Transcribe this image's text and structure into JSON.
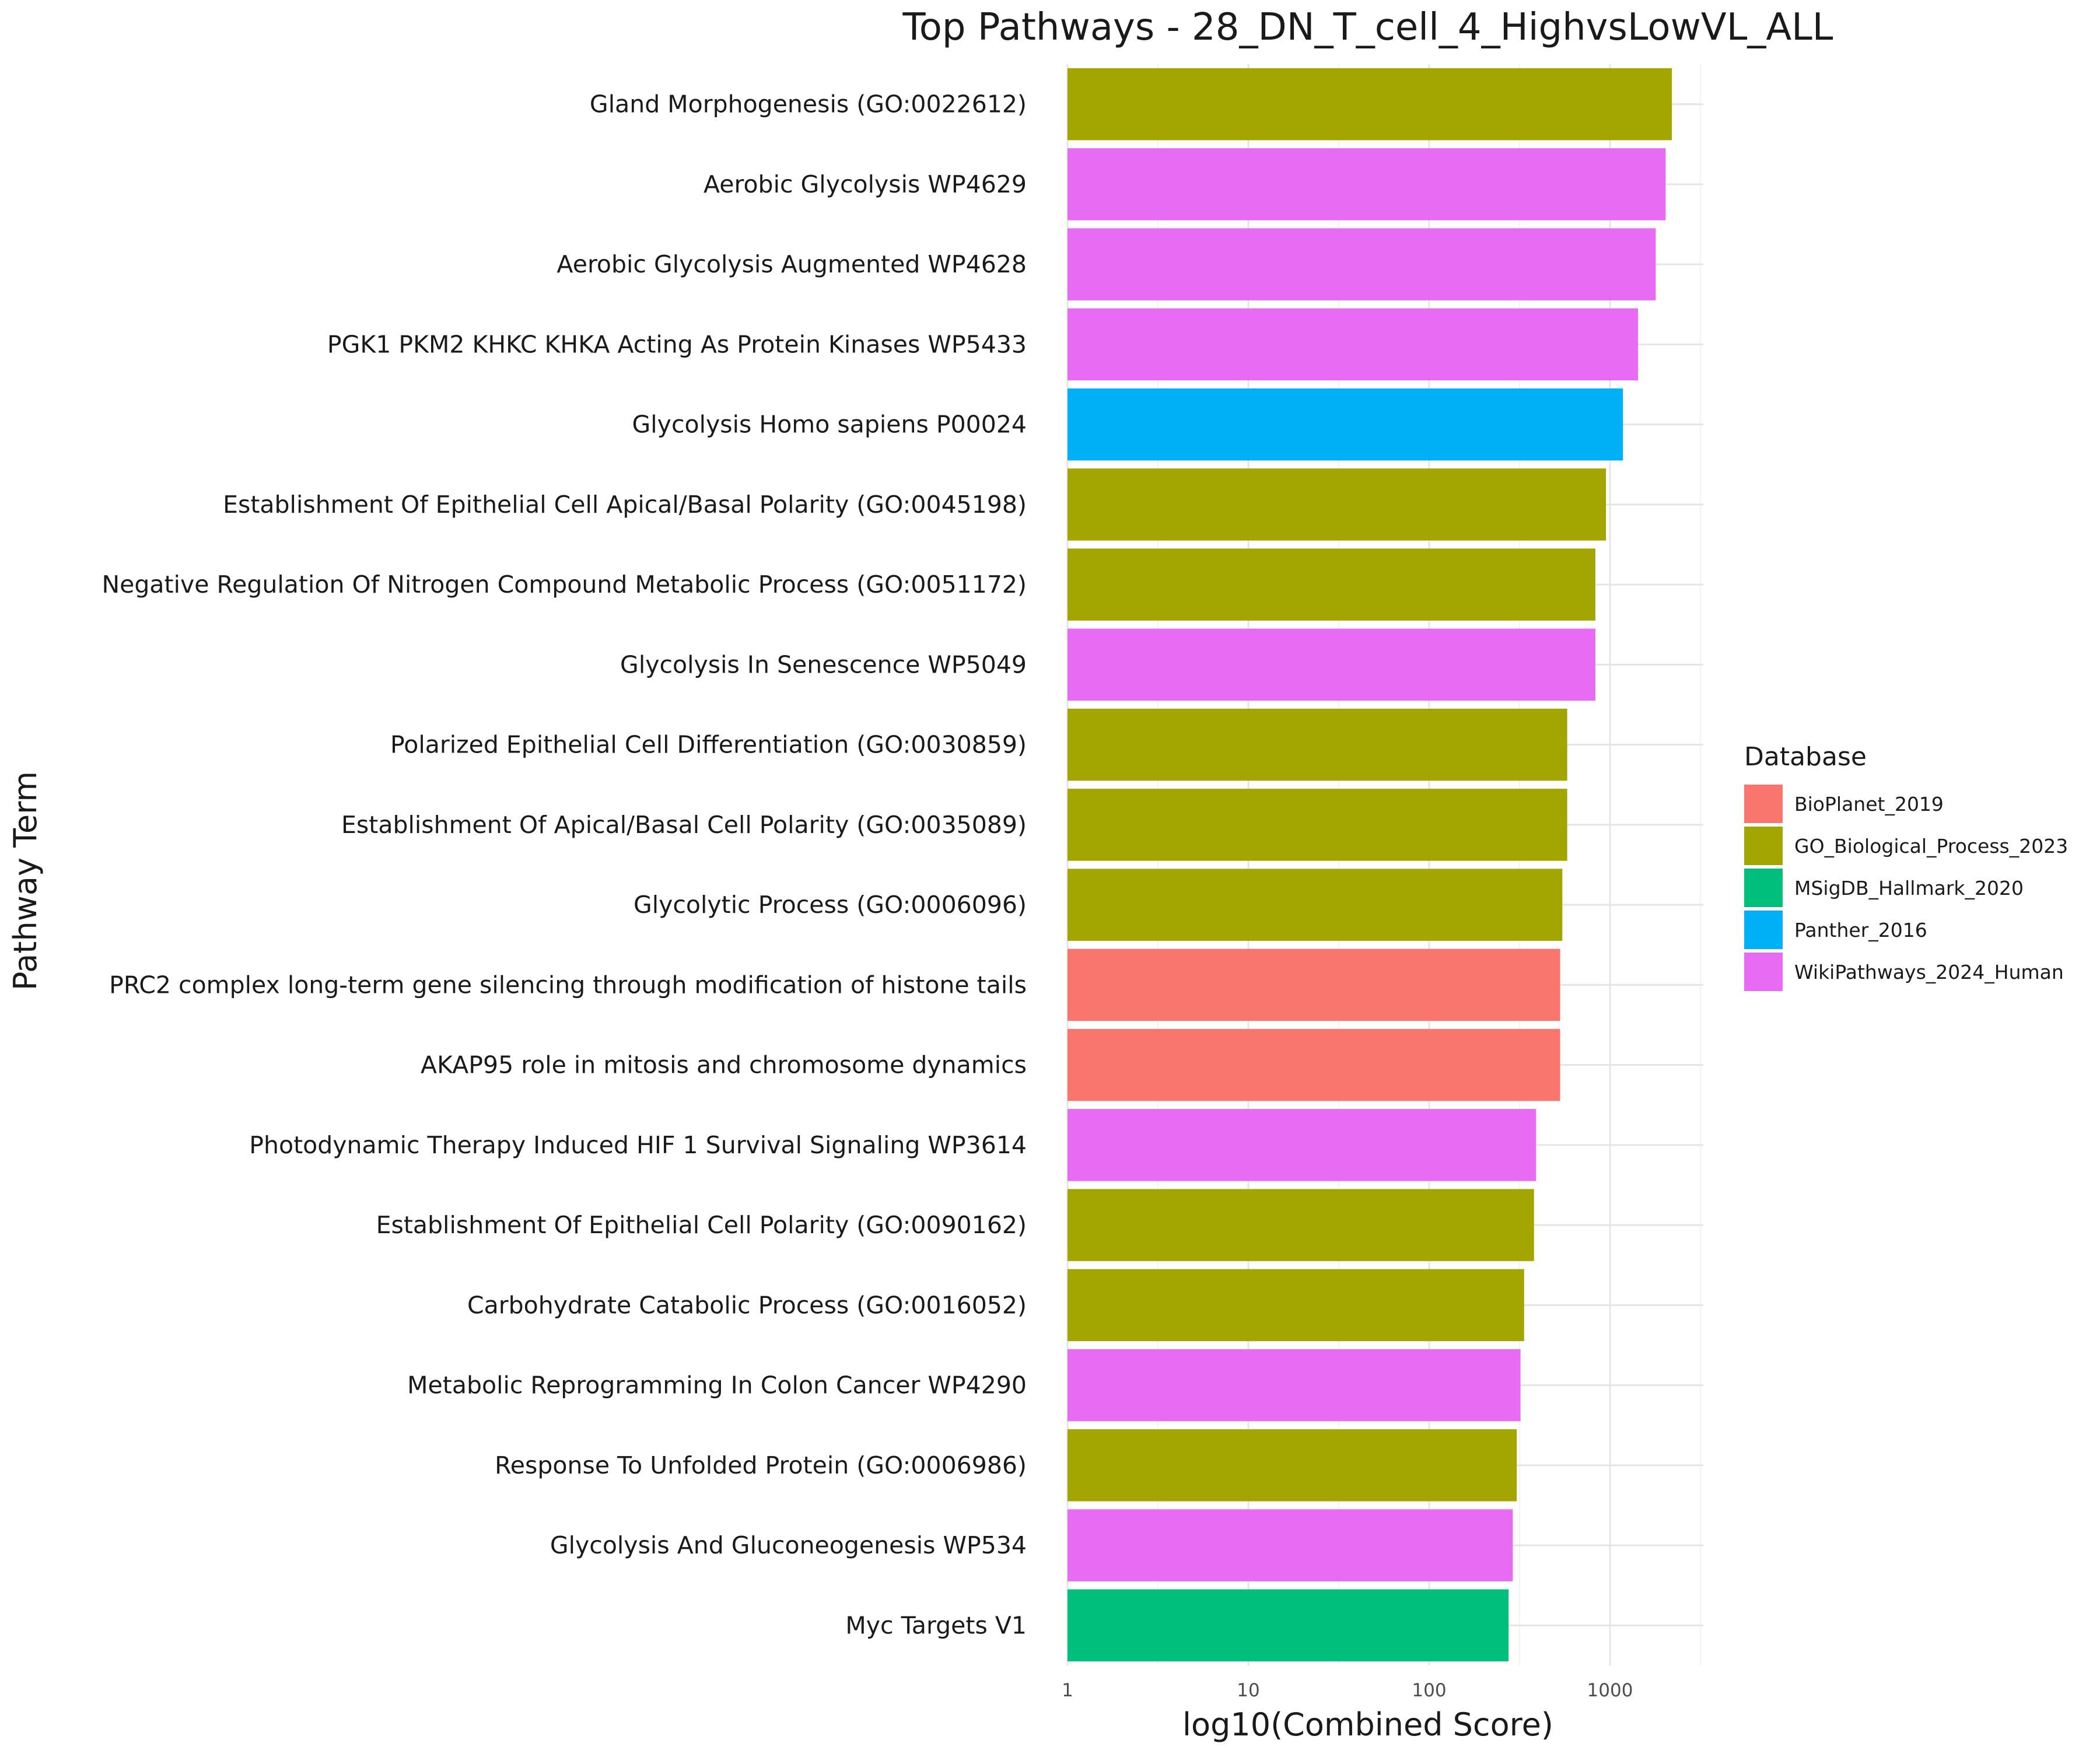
{
  "chart_data": {
    "type": "bar",
    "orientation": "horizontal",
    "title": "Top Pathways - 28_DN_T_cell_4_HighvsLowVL_ALL",
    "xlabel": "log10(Combined Score)",
    "ylabel": "Pathway Term",
    "x_scale": "log10",
    "xlim": [
      1,
      3500
    ],
    "x_ticks": [
      "1",
      "10",
      "100",
      "1000"
    ],
    "grid": true,
    "legend": {
      "title": "Database",
      "position": "right",
      "entries": [
        {
          "name": "BioPlanet_2019",
          "color": "#F8766D"
        },
        {
          "name": "GO_Biological_Process_2023",
          "color": "#A3A500"
        },
        {
          "name": "MSigDB_Hallmark_2020",
          "color": "#00BF7D"
        },
        {
          "name": "Panther_2016",
          "color": "#00B0F6"
        },
        {
          "name": "WikiPathways_2024_Human",
          "color": "#E76BF3"
        }
      ]
    },
    "bars": [
      {
        "term": "Gland Morphogenesis (GO:0022612)",
        "value": 2200,
        "database": "GO_Biological_Process_2023"
      },
      {
        "term": "Aerobic Glycolysis WP4629",
        "value": 2030,
        "database": "WikiPathways_2024_Human"
      },
      {
        "term": "Aerobic Glycolysis Augmented WP4628",
        "value": 1790,
        "database": "WikiPathways_2024_Human"
      },
      {
        "term": "PGK1 PKM2 KHKC KHKA Acting As Protein Kinases WP5433",
        "value": 1430,
        "database": "WikiPathways_2024_Human"
      },
      {
        "term": "Glycolysis Homo sapiens P00024",
        "value": 1180,
        "database": "Panther_2016"
      },
      {
        "term": "Establishment Of Epithelial Cell Apical/Basal Polarity (GO:0045198)",
        "value": 950,
        "database": "GO_Biological_Process_2023"
      },
      {
        "term": "Negative Regulation Of Nitrogen Compound Metabolic Process (GO:0051172)",
        "value": 830,
        "database": "GO_Biological_Process_2023"
      },
      {
        "term": "Glycolysis In Senescence WP5049",
        "value": 830,
        "database": "WikiPathways_2024_Human"
      },
      {
        "term": "Polarized Epithelial Cell Differentiation (GO:0030859)",
        "value": 580,
        "database": "GO_Biological_Process_2023"
      },
      {
        "term": "Establishment Of Apical/Basal Cell Polarity (GO:0035089)",
        "value": 580,
        "database": "GO_Biological_Process_2023"
      },
      {
        "term": "Glycolytic Process (GO:0006096)",
        "value": 545,
        "database": "GO_Biological_Process_2023"
      },
      {
        "term": "PRC2 complex long-term gene silencing through modification of histone tails",
        "value": 530,
        "database": "BioPlanet_2019"
      },
      {
        "term": "AKAP95 role in mitosis and chromosome dynamics",
        "value": 530,
        "database": "BioPlanet_2019"
      },
      {
        "term": "Photodynamic Therapy Induced HIF 1 Survival Signaling WP3614",
        "value": 390,
        "database": "WikiPathways_2024_Human"
      },
      {
        "term": "Establishment Of Epithelial Cell Polarity (GO:0090162)",
        "value": 380,
        "database": "GO_Biological_Process_2023"
      },
      {
        "term": "Carbohydrate Catabolic Process (GO:0016052)",
        "value": 335,
        "database": "GO_Biological_Process_2023"
      },
      {
        "term": "Metabolic Reprogramming In Colon Cancer WP4290",
        "value": 320,
        "database": "WikiPathways_2024_Human"
      },
      {
        "term": "Response To Unfolded Protein (GO:0006986)",
        "value": 305,
        "database": "GO_Biological_Process_2023"
      },
      {
        "term": "Glycolysis And Gluconeogenesis WP534",
        "value": 290,
        "database": "WikiPathways_2024_Human"
      },
      {
        "term": "Myc Targets V1",
        "value": 275,
        "database": "MSigDB_Hallmark_2020"
      }
    ]
  }
}
